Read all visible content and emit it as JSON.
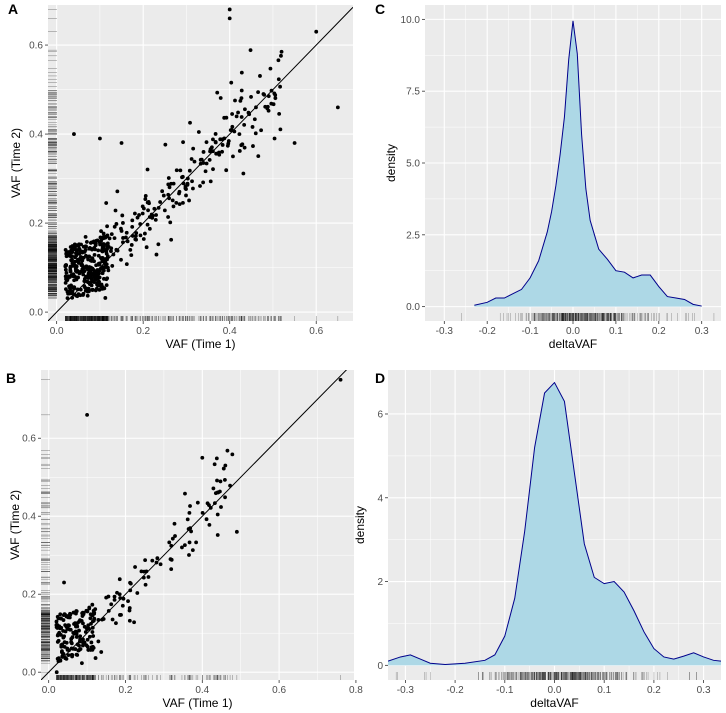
{
  "chart_data": [
    {
      "panel_label": "A",
      "type": "scatter",
      "title": "",
      "xlabel": "VAF (Time 1)",
      "ylabel": "VAF (Time 2)",
      "xlim": [
        -0.02,
        0.685
      ],
      "ylim": [
        -0.02,
        0.69
      ],
      "xticks": [
        0.0,
        0.2,
        0.4,
        0.6
      ],
      "yticks": [
        0.0,
        0.2,
        0.4,
        0.6
      ],
      "xtick_labels": [
        "0.0",
        "0.2",
        "0.4",
        "0.6"
      ],
      "ytick_labels": [
        "0.0",
        "0.2",
        "0.4",
        "0.6"
      ],
      "reference_line": "y = x",
      "marginal_rugs": true,
      "point_color": "#000000",
      "panel_background": "#ebebeb",
      "gridline_color": "#ffffff",
      "approx_n_points": 520,
      "notable_points": [
        {
          "x": 0.4,
          "y": 0.68
        },
        {
          "x": 0.4,
          "y": 0.66
        },
        {
          "x": 0.6,
          "y": 0.63
        },
        {
          "x": 0.65,
          "y": 0.46
        },
        {
          "x": 0.55,
          "y": 0.38
        },
        {
          "x": 0.04,
          "y": 0.4
        },
        {
          "x": 0.1,
          "y": 0.39
        },
        {
          "x": 0.15,
          "y": 0.38
        }
      ]
    },
    {
      "panel_label": "B",
      "type": "scatter",
      "title": "",
      "xlabel": "VAF (Time 1)",
      "ylabel": "VAF (Time 2)",
      "xlim": [
        -0.02,
        0.795
      ],
      "ylim": [
        -0.02,
        0.775
      ],
      "xticks": [
        0.0,
        0.2,
        0.4,
        0.6,
        0.8
      ],
      "yticks": [
        0.0,
        0.2,
        0.4,
        0.6
      ],
      "xtick_labels": [
        "0.0",
        "0.2",
        "0.4",
        "0.6",
        "0.8"
      ],
      "ytick_labels": [
        "0.0",
        "0.2",
        "0.4",
        "0.6"
      ],
      "reference_line": "y = x",
      "marginal_rugs": true,
      "point_color": "#000000",
      "panel_background": "#ebebeb",
      "gridline_color": "#ffffff",
      "approx_n_points": 250,
      "notable_points": [
        {
          "x": 0.76,
          "y": 0.75
        },
        {
          "x": 0.1,
          "y": 0.66
        },
        {
          "x": 0.4,
          "y": 0.55
        },
        {
          "x": 0.46,
          "y": 0.53
        },
        {
          "x": 0.49,
          "y": 0.36
        },
        {
          "x": 0.04,
          "y": 0.23
        }
      ]
    },
    {
      "panel_label": "C",
      "type": "area",
      "title": "",
      "xlabel": "deltaVAF",
      "ylabel": "density",
      "xlim": [
        -0.345,
        0.345
      ],
      "ylim": [
        -0.5,
        10.5
      ],
      "xticks": [
        -0.3,
        -0.2,
        -0.1,
        0.0,
        0.1,
        0.2,
        0.3
      ],
      "yticks": [
        0.0,
        2.5,
        5.0,
        7.5,
        10.0
      ],
      "xtick_labels": [
        "-0.3",
        "-0.2",
        "-0.1",
        "0.0",
        "0.1",
        "0.2",
        "0.3"
      ],
      "ytick_labels": [
        "0.0",
        "2.5",
        "5.0",
        "7.5",
        "10.0"
      ],
      "fill_color": "#add8e6",
      "line_color": "#00008b",
      "marginal_rugs": true,
      "density_curve": {
        "x": [
          -0.23,
          -0.2,
          -0.18,
          -0.16,
          -0.14,
          -0.12,
          -0.1,
          -0.08,
          -0.06,
          -0.05,
          -0.04,
          -0.03,
          -0.02,
          -0.01,
          0.0,
          0.01,
          0.02,
          0.03,
          0.04,
          0.05,
          0.06,
          0.08,
          0.1,
          0.12,
          0.14,
          0.16,
          0.18,
          0.2,
          0.22,
          0.24,
          0.26,
          0.28,
          0.3
        ],
        "y": [
          0.05,
          0.15,
          0.3,
          0.3,
          0.45,
          0.6,
          1.0,
          1.6,
          2.6,
          3.3,
          4.2,
          5.3,
          6.6,
          8.6,
          9.95,
          8.8,
          6.0,
          4.1,
          3.0,
          2.5,
          2.0,
          1.65,
          1.25,
          1.2,
          1.0,
          1.1,
          1.1,
          0.7,
          0.35,
          0.3,
          0.25,
          0.08,
          0.02
        ]
      }
    },
    {
      "panel_label": "D",
      "type": "area",
      "title": "",
      "xlabel": "deltaVAF",
      "ylabel": "density",
      "xlim": [
        -0.335,
        0.335
      ],
      "ylim": [
        -0.35,
        7.05
      ],
      "xticks": [
        -0.3,
        -0.2,
        -0.1,
        0.0,
        0.1,
        0.2,
        0.3
      ],
      "yticks": [
        0,
        2,
        4,
        6
      ],
      "xtick_labels": [
        "-0.3",
        "-0.2",
        "-0.1",
        "0.0",
        "0.1",
        "0.2",
        "0.3"
      ],
      "ytick_labels": [
        "0",
        "2",
        "4",
        "6"
      ],
      "fill_color": "#add8e6",
      "line_color": "#00008b",
      "marginal_rugs": true,
      "density_curve": {
        "x": [
          -0.335,
          -0.31,
          -0.29,
          -0.27,
          -0.25,
          -0.22,
          -0.18,
          -0.14,
          -0.12,
          -0.1,
          -0.08,
          -0.06,
          -0.04,
          -0.02,
          0.0,
          0.02,
          0.04,
          0.06,
          0.08,
          0.1,
          0.12,
          0.14,
          0.16,
          0.18,
          0.2,
          0.22,
          0.24,
          0.26,
          0.28,
          0.3,
          0.32,
          0.335
        ],
        "y": [
          0.1,
          0.2,
          0.25,
          0.15,
          0.05,
          0.02,
          0.05,
          0.12,
          0.25,
          0.7,
          1.6,
          3.2,
          5.2,
          6.5,
          6.75,
          6.3,
          4.6,
          2.9,
          2.1,
          1.95,
          2.0,
          1.75,
          1.3,
          0.8,
          0.4,
          0.2,
          0.15,
          0.22,
          0.3,
          0.2,
          0.12,
          0.1
        ]
      }
    }
  ]
}
